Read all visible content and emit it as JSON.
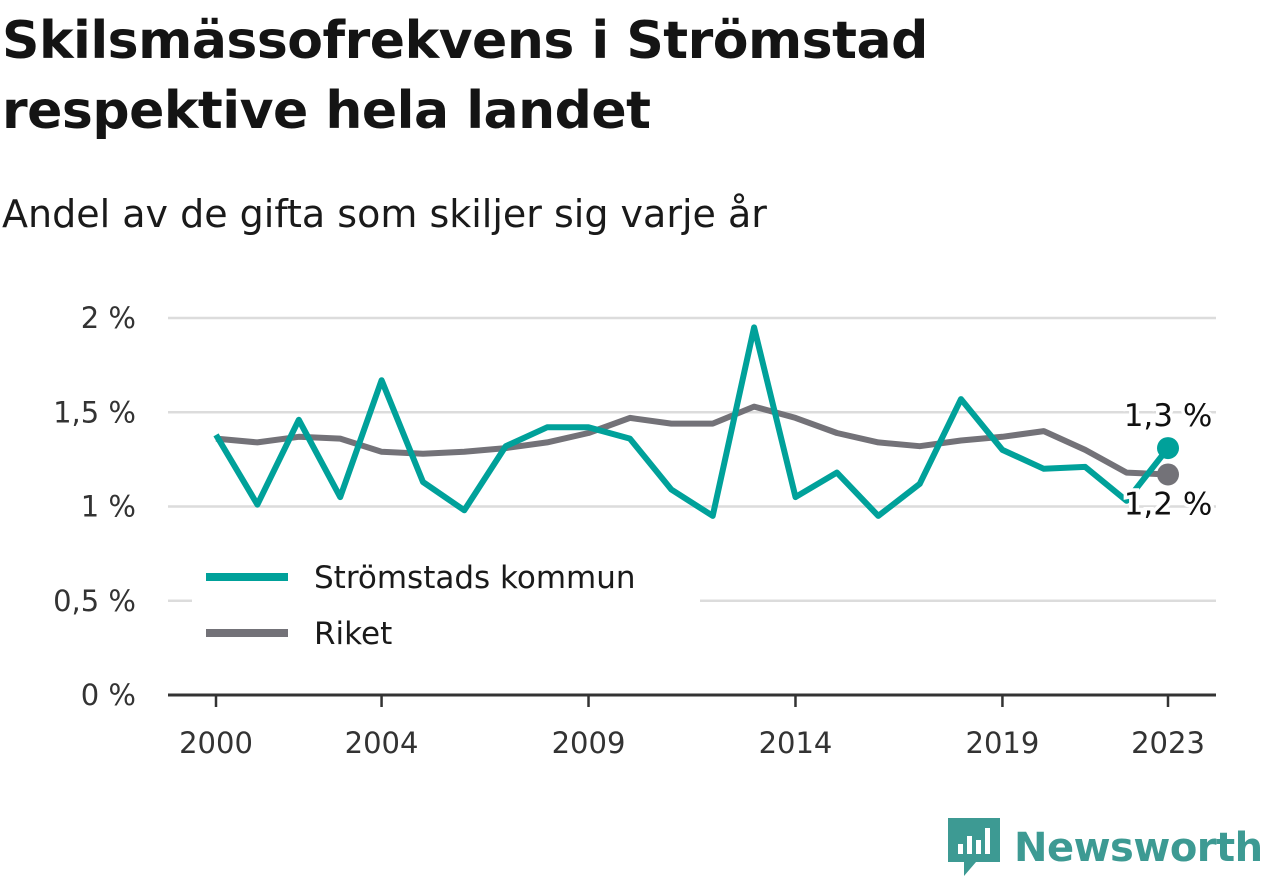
{
  "title": "Skilsmässofrekvens i Strömstad respektive hela landet",
  "subtitle": "Andel av de gifta som skiljer sig varje år",
  "brand": "Newsworthy",
  "chart_data": {
    "type": "line",
    "title": "Skilsmässofrekvens i Strömstad respektive hela landet",
    "subtitle": "Andel av de gifta som skiljer sig varje år",
    "x": [
      2000,
      2001,
      2002,
      2003,
      2004,
      2005,
      2006,
      2007,
      2008,
      2009,
      2010,
      2011,
      2012,
      2013,
      2014,
      2015,
      2016,
      2017,
      2018,
      2019,
      2020,
      2021,
      2022,
      2023
    ],
    "series": [
      {
        "name": "Strömstads kommun",
        "color": "#00a19a",
        "values": [
          1.38,
          1.01,
          1.46,
          1.05,
          1.67,
          1.13,
          0.98,
          1.32,
          1.42,
          1.42,
          1.36,
          1.09,
          0.95,
          1.95,
          1.05,
          1.18,
          0.95,
          1.12,
          1.57,
          1.3,
          1.2,
          1.21,
          1.03,
          1.31
        ]
      },
      {
        "name": "Riket",
        "color": "#737278",
        "values": [
          1.36,
          1.34,
          1.37,
          1.36,
          1.29,
          1.28,
          1.29,
          1.31,
          1.34,
          1.39,
          1.47,
          1.44,
          1.44,
          1.53,
          1.47,
          1.39,
          1.34,
          1.32,
          1.35,
          1.37,
          1.4,
          1.3,
          1.18,
          1.17
        ]
      }
    ],
    "xticks": [
      2000,
      2004,
      2009,
      2014,
      2019,
      2023
    ],
    "xtick_labels": [
      "2000",
      "2004",
      "2009",
      "2014",
      "2019",
      "2023"
    ],
    "yticks": [
      0,
      0.5,
      1,
      1.5,
      2
    ],
    "ytick_labels": [
      "0 %",
      "0,5 %",
      "1 %",
      "1,5 %",
      "2 %"
    ],
    "ylim": [
      0,
      2
    ],
    "xlim": [
      2000,
      2023
    ],
    "grid": true,
    "legend": "bottom-left",
    "end_labels": [
      {
        "series": "Strömstads kommun",
        "text": "1,3 %"
      },
      {
        "series": "Riket",
        "text": "1,2 %"
      }
    ]
  }
}
